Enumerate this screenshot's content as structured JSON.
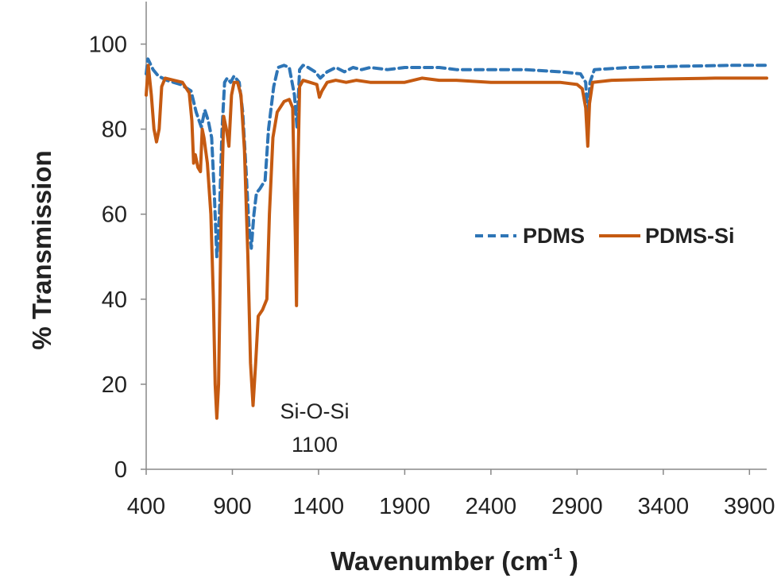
{
  "chart_data": {
    "type": "line",
    "title": "",
    "xlabel": "Wavenumber (cm",
    "xlabel_sup": "-1",
    "xlabel_tail": " )",
    "ylabel": "% Transmission",
    "xlim": [
      400,
      4000
    ],
    "ylim": [
      0,
      110
    ],
    "x_ticks": [
      400,
      900,
      1400,
      1900,
      2400,
      2900,
      3400,
      3900
    ],
    "y_ticks": [
      0,
      20,
      40,
      60,
      80,
      100
    ],
    "grid": false,
    "legend_position": "right",
    "annotation": {
      "lines": [
        "Si-O-Si",
        "1100"
      ],
      "x": 1170,
      "y_top": 12,
      "y_bottom": 4
    },
    "series": [
      {
        "name": "PDMS",
        "color": "#2e75b6",
        "style": "dashed",
        "points": [
          [
            400,
            93
          ],
          [
            410,
            96.5
          ],
          [
            440,
            94
          ],
          [
            470,
            92.5
          ],
          [
            520,
            91.5
          ],
          [
            600,
            90.5
          ],
          [
            660,
            89
          ],
          [
            690,
            84
          ],
          [
            720,
            80.5
          ],
          [
            740,
            84.5
          ],
          [
            760,
            82
          ],
          [
            780,
            78
          ],
          [
            795,
            65
          ],
          [
            810,
            50
          ],
          [
            825,
            60
          ],
          [
            840,
            80
          ],
          [
            855,
            91
          ],
          [
            870,
            92
          ],
          [
            890,
            91
          ],
          [
            910,
            92.5
          ],
          [
            940,
            91
          ],
          [
            960,
            84
          ],
          [
            980,
            70
          ],
          [
            995,
            58
          ],
          [
            1010,
            52
          ],
          [
            1025,
            60
          ],
          [
            1040,
            65
          ],
          [
            1060,
            66
          ],
          [
            1090,
            68
          ],
          [
            1110,
            80
          ],
          [
            1140,
            90
          ],
          [
            1165,
            94.5
          ],
          [
            1200,
            95
          ],
          [
            1230,
            94.5
          ],
          [
            1260,
            88
          ],
          [
            1275,
            80.5
          ],
          [
            1290,
            94
          ],
          [
            1310,
            95
          ],
          [
            1340,
            94.5
          ],
          [
            1380,
            93.5
          ],
          [
            1410,
            92
          ],
          [
            1450,
            93.5
          ],
          [
            1500,
            94.5
          ],
          [
            1550,
            93.5
          ],
          [
            1600,
            94.5
          ],
          [
            1650,
            94
          ],
          [
            1700,
            94.5
          ],
          [
            1800,
            94
          ],
          [
            1900,
            94.5
          ],
          [
            2000,
            94.5
          ],
          [
            2100,
            94.5
          ],
          [
            2200,
            94
          ],
          [
            2400,
            94
          ],
          [
            2600,
            94
          ],
          [
            2800,
            93.5
          ],
          [
            2920,
            93
          ],
          [
            2950,
            91
          ],
          [
            2962,
            82
          ],
          [
            2975,
            91
          ],
          [
            3000,
            94
          ],
          [
            3200,
            94.5
          ],
          [
            3500,
            94.8
          ],
          [
            3800,
            95
          ],
          [
            4000,
            95
          ]
        ]
      },
      {
        "name": "PDMS-Si",
        "color": "#c55a11",
        "style": "solid",
        "points": [
          [
            400,
            88
          ],
          [
            412,
            95
          ],
          [
            430,
            88
          ],
          [
            445,
            80
          ],
          [
            460,
            77
          ],
          [
            475,
            80
          ],
          [
            490,
            90
          ],
          [
            510,
            92
          ],
          [
            560,
            91.5
          ],
          [
            610,
            91
          ],
          [
            650,
            88.5
          ],
          [
            665,
            82
          ],
          [
            675,
            72
          ],
          [
            685,
            74
          ],
          [
            700,
            71
          ],
          [
            715,
            70
          ],
          [
            725,
            80
          ],
          [
            735,
            78
          ],
          [
            755,
            72
          ],
          [
            775,
            60
          ],
          [
            790,
            40
          ],
          [
            800,
            20
          ],
          [
            810,
            12
          ],
          [
            820,
            20
          ],
          [
            835,
            60
          ],
          [
            850,
            83
          ],
          [
            865,
            80
          ],
          [
            880,
            76
          ],
          [
            895,
            88
          ],
          [
            910,
            91
          ],
          [
            930,
            91
          ],
          [
            950,
            88
          ],
          [
            970,
            75
          ],
          [
            990,
            50
          ],
          [
            1005,
            25
          ],
          [
            1020,
            15
          ],
          [
            1035,
            25
          ],
          [
            1050,
            36
          ],
          [
            1075,
            37.5
          ],
          [
            1100,
            40
          ],
          [
            1115,
            60
          ],
          [
            1135,
            78
          ],
          [
            1160,
            84
          ],
          [
            1200,
            86.5
          ],
          [
            1230,
            87
          ],
          [
            1250,
            85
          ],
          [
            1265,
            55
          ],
          [
            1272,
            38.5
          ],
          [
            1280,
            70
          ],
          [
            1290,
            90
          ],
          [
            1310,
            91.5
          ],
          [
            1350,
            91
          ],
          [
            1390,
            90.5
          ],
          [
            1405,
            87.5
          ],
          [
            1420,
            89
          ],
          [
            1450,
            91
          ],
          [
            1500,
            91.5
          ],
          [
            1560,
            91
          ],
          [
            1620,
            91.5
          ],
          [
            1700,
            91
          ],
          [
            1800,
            91
          ],
          [
            1900,
            91
          ],
          [
            2000,
            92
          ],
          [
            2100,
            91.5
          ],
          [
            2200,
            91.5
          ],
          [
            2400,
            91
          ],
          [
            2600,
            91
          ],
          [
            2800,
            91
          ],
          [
            2900,
            90.5
          ],
          [
            2930,
            89.5
          ],
          [
            2950,
            85
          ],
          [
            2962,
            76
          ],
          [
            2972,
            86
          ],
          [
            2990,
            91
          ],
          [
            3100,
            91.5
          ],
          [
            3400,
            91.8
          ],
          [
            3700,
            92
          ],
          [
            4000,
            92
          ]
        ]
      }
    ]
  }
}
